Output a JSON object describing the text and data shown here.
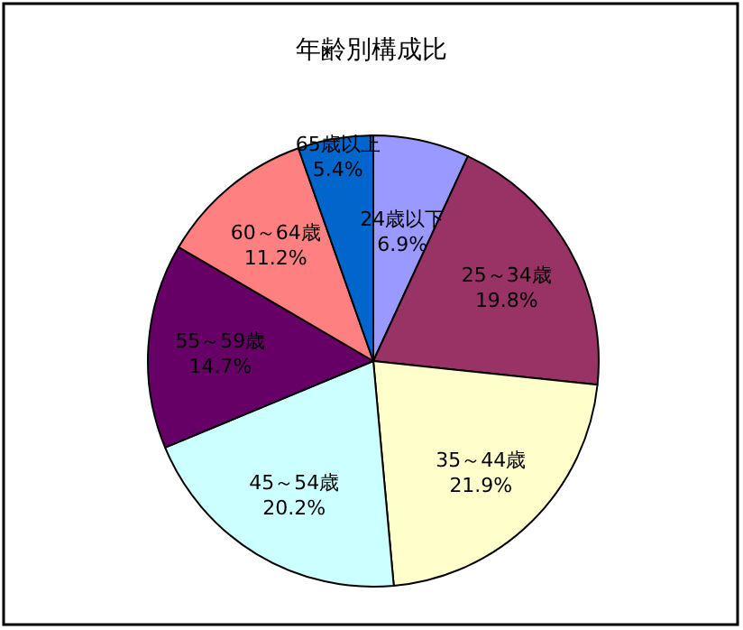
{
  "chart_data": {
    "type": "pie",
    "title": "年齢別構成比",
    "categories": [
      "24歳以下",
      "25～34歳",
      "35～44歳",
      "45～54歳",
      "55～59歳",
      "60～64歳",
      "65歳以上"
    ],
    "values": [
      6.9,
      19.8,
      21.9,
      20.2,
      14.7,
      11.2,
      5.4
    ],
    "colors": [
      "#9999ff",
      "#993366",
      "#ffffcc",
      "#ccffff",
      "#660066",
      "#ff8080",
      "#0066cc"
    ],
    "value_labels": [
      "6.9%",
      "19.8%",
      "21.9%",
      "20.2%",
      "14.7%",
      "11.2%",
      "5.4%"
    ]
  }
}
